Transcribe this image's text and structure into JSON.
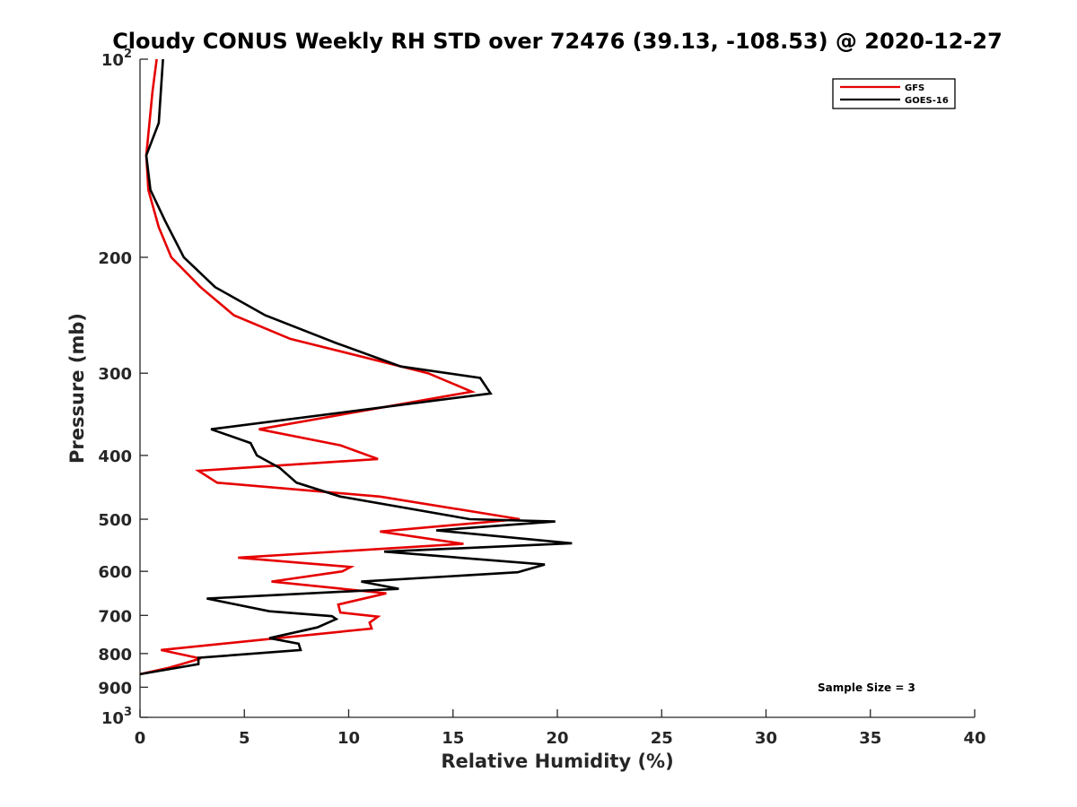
{
  "chart_data": {
    "type": "line",
    "title": "Cloudy CONUS Weekly RH STD over 72476 (39.13, -108.53) @ 2020-12-27",
    "xlabel": "Relative Humidity (%)",
    "ylabel": "Pressure (mb)",
    "xlim": [
      0,
      40
    ],
    "ylim": [
      100,
      1000
    ],
    "y_scale": "log",
    "y_reversed": true,
    "x_ticks": [
      "0",
      "5",
      "10",
      "15",
      "20",
      "25",
      "30",
      "35",
      "40"
    ],
    "y_ticks": [
      {
        "value": 100,
        "label": "10",
        "sup": "2"
      },
      {
        "value": 200,
        "label": "200",
        "sup": ""
      },
      {
        "value": 300,
        "label": "300",
        "sup": ""
      },
      {
        "value": 400,
        "label": "400",
        "sup": ""
      },
      {
        "value": 500,
        "label": "500",
        "sup": ""
      },
      {
        "value": 600,
        "label": "600",
        "sup": ""
      },
      {
        "value": 700,
        "label": "700",
        "sup": ""
      },
      {
        "value": 800,
        "label": "800",
        "sup": ""
      },
      {
        "value": 900,
        "label": "900",
        "sup": ""
      },
      {
        "value": 1000,
        "label": "10",
        "sup": "3"
      }
    ],
    "legend_position": "top-right",
    "annotation": "Sample Size = 3",
    "series": [
      {
        "name": "GFS",
        "color": "#e60000",
        "points": [
          [
            0.8,
            100
          ],
          [
            0.6,
            112
          ],
          [
            0.3,
            140
          ],
          [
            0.4,
            158
          ],
          [
            0.9,
            180
          ],
          [
            1.5,
            200
          ],
          [
            2.9,
            222
          ],
          [
            4.5,
            245
          ],
          [
            7.2,
            266
          ],
          [
            13.8,
            300
          ],
          [
            15.9,
            320
          ],
          [
            5.7,
            365
          ],
          [
            9.6,
            386
          ],
          [
            11.4,
            405
          ],
          [
            2.8,
            422
          ],
          [
            3.7,
            440
          ],
          [
            11.5,
            462
          ],
          [
            18.2,
            500
          ],
          [
            11.5,
            522
          ],
          [
            15.5,
            545
          ],
          [
            4.7,
            572
          ],
          [
            10.1,
            591
          ],
          [
            9.7,
            600
          ],
          [
            6.3,
            622
          ],
          [
            11.8,
            648
          ],
          [
            9.5,
            674
          ],
          [
            9.6,
            693
          ],
          [
            11.4,
            703
          ],
          [
            11.0,
            718
          ],
          [
            11.1,
            733
          ],
          [
            1.0,
            790
          ],
          [
            2.9,
            814
          ],
          [
            2.0,
            830
          ],
          [
            1.3,
            842
          ],
          [
            0.0,
            860
          ]
        ]
      },
      {
        "name": "GOES-16",
        "color": "#000000",
        "points": [
          [
            1.1,
            100
          ],
          [
            0.9,
            125
          ],
          [
            0.3,
            140
          ],
          [
            0.5,
            158
          ],
          [
            1.2,
            176
          ],
          [
            2.1,
            200
          ],
          [
            3.6,
            222
          ],
          [
            6.0,
            245
          ],
          [
            9.4,
            270
          ],
          [
            12.5,
            293
          ],
          [
            16.3,
            305
          ],
          [
            16.8,
            322
          ],
          [
            3.4,
            365
          ],
          [
            5.3,
            383
          ],
          [
            5.6,
            400
          ],
          [
            6.7,
            418
          ],
          [
            7.5,
            440
          ],
          [
            9.6,
            462
          ],
          [
            15.8,
            500
          ],
          [
            19.9,
            504
          ],
          [
            14.2,
            520
          ],
          [
            20.7,
            544
          ],
          [
            11.7,
            560
          ],
          [
            19.4,
            586
          ],
          [
            18.1,
            602
          ],
          [
            10.6,
            622
          ],
          [
            12.4,
            638
          ],
          [
            3.2,
            660
          ],
          [
            6.2,
            690
          ],
          [
            9.2,
            702
          ],
          [
            9.4,
            709
          ],
          [
            8.5,
            730
          ],
          [
            6.2,
            758
          ],
          [
            7.6,
            773
          ],
          [
            7.7,
            790
          ],
          [
            2.8,
            812
          ],
          [
            2.8,
            830
          ],
          [
            0.0,
            860
          ]
        ]
      }
    ]
  }
}
